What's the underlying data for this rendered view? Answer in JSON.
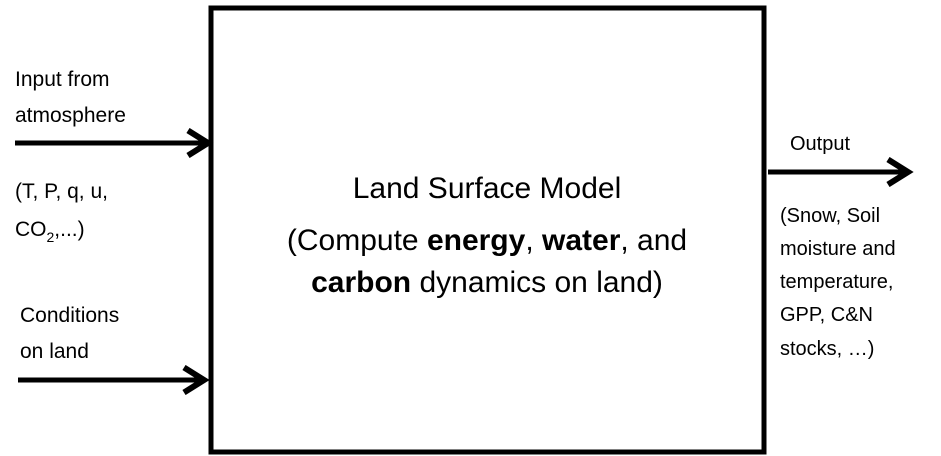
{
  "inputs": [
    {
      "lines": [
        "Input from",
        "atmosphere"
      ],
      "detail": {
        "line1": "(T, P, q, u,",
        "line2": [
          "CO",
          "2",
          ",...)"
        ]
      }
    },
    {
      "lines": [
        "Conditions",
        "on land"
      ]
    }
  ],
  "model": {
    "title": "Land Surface Model",
    "line2": [
      "(Compute ",
      "energy",
      ", ",
      "water",
      ", and"
    ],
    "line3": [
      "carbon",
      " dynamics on land)"
    ]
  },
  "output": {
    "label": "Output",
    "lines": [
      "(Snow, Soil",
      "moisture and",
      "temperature,",
      "GPP, C&N",
      "stocks, …)"
    ]
  }
}
